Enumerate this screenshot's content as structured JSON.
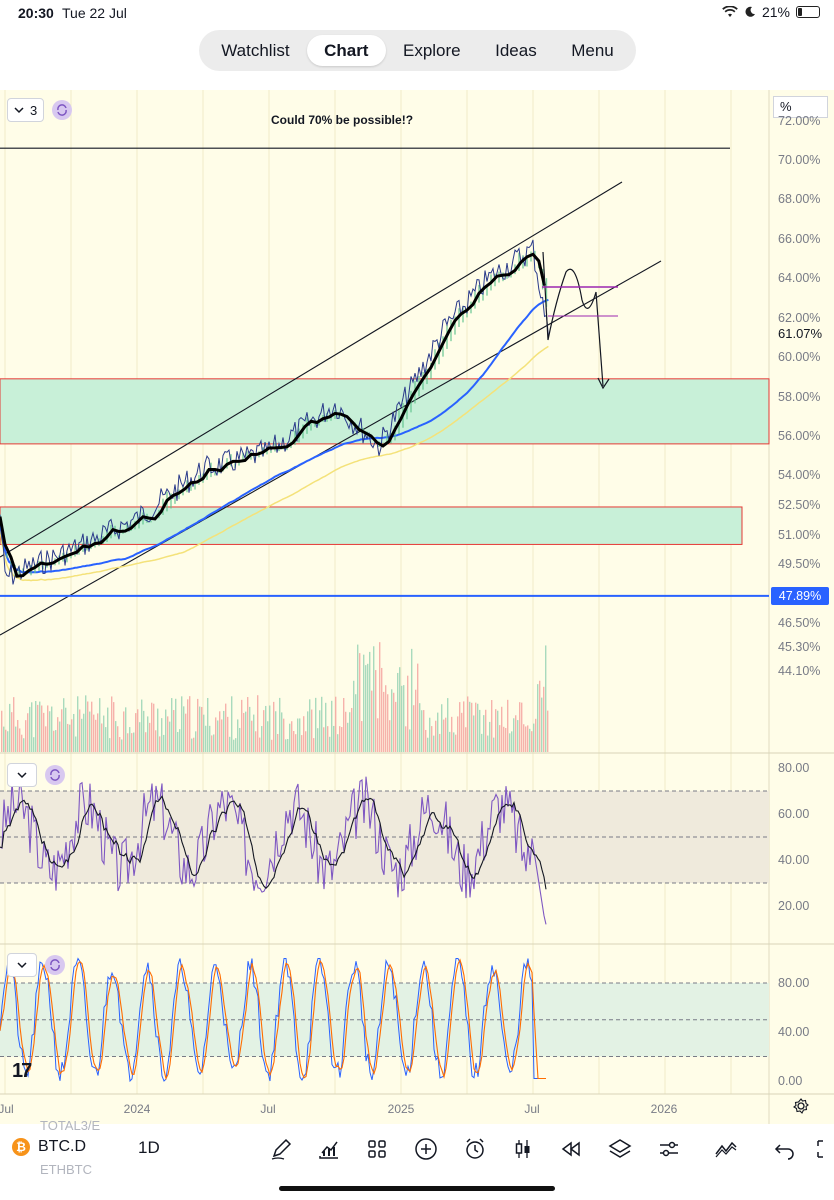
{
  "status_bar": {
    "time": "20:30",
    "date": "Tue 22 Jul",
    "battery": "21%",
    "battery_level": 0.21
  },
  "nav": {
    "tabs": [
      "Watchlist",
      "Chart",
      "Explore",
      "Ideas",
      "Menu"
    ],
    "active": "Chart"
  },
  "chart": {
    "layer_count": "3",
    "scale_toggle": "%",
    "annotation": "Could 70% be possible!?",
    "price_scale_labels": [
      "72.00%",
      "70.00%",
      "68.00%",
      "66.00%",
      "64.00%",
      "62.00%",
      "60.00%",
      "58.00%",
      "56.00%",
      "54.00%",
      "52.50%",
      "51.00%",
      "49.50%",
      "46.50%",
      "45.30%",
      "44.10%"
    ],
    "last_price": "61.07%",
    "marked_level": "47.89%",
    "rsi_scale_labels": [
      "80.00",
      "60.00",
      "40.00",
      "20.00"
    ],
    "stoch_scale_labels": [
      "80.00",
      "40.00",
      "0.00"
    ],
    "time_axis_labels": [
      "Jul",
      "2024",
      "Jul",
      "2025",
      "Jul",
      "2026"
    ],
    "colors": {
      "background": "#fffde8",
      "zone": "#c8f0d8",
      "zone_border": "#e53935",
      "level_line": "#2962ff",
      "rsi": "#7e57c2",
      "stoch_k": "#2962ff",
      "stoch_d": "#ff6d00"
    }
  },
  "chart_data": {
    "type": "line",
    "title": "",
    "y_unit": "%",
    "x": [
      "2023-07",
      "2023-10",
      "2024-01",
      "2024-04",
      "2024-07",
      "2024-10",
      "2024-12",
      "2025-03",
      "2025-05",
      "2025-07",
      "2025-07-22"
    ],
    "series": [
      {
        "values": [
          48.8,
          50.2,
          51.8,
          54.3,
          55.2,
          57.6,
          55.5,
          61.5,
          64.0,
          65.5,
          61.07
        ]
      }
    ],
    "horizontal_levels": [
      70.6,
      47.89
    ],
    "zones": [
      [
        55.6,
        58.9
      ],
      [
        50.5,
        52.4
      ]
    ],
    "ylim": [
      43.5,
      72.5
    ],
    "xlim": [
      "2023-06",
      "2026-04"
    ]
  },
  "toolbar": {
    "symbol": "BTC.D",
    "symbol_coin": "₿",
    "interval": "1D",
    "ghost_top": "TOTAL3/E",
    "ghost_bottom": "ETHBTC",
    "tools": [
      "pen-icon",
      "chart-type-icon",
      "grid-icon",
      "plus-icon",
      "alarm-icon",
      "candles-icon",
      "replay-icon",
      "layers-icon",
      "settings-sliders-icon",
      "compare-icon",
      "undo-icon",
      "fullscreen-icon"
    ]
  }
}
